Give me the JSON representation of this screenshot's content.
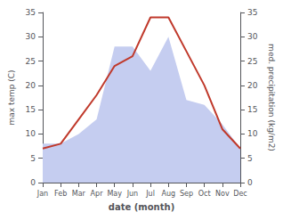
{
  "chart_data": {
    "type": "line",
    "categories": [
      "Jan",
      "Feb",
      "Mar",
      "Apr",
      "May",
      "Jun",
      "Jul",
      "Aug",
      "Sep",
      "Oct",
      "Nov",
      "Dec"
    ],
    "series": [
      {
        "type": "area",
        "color": "#c5cdf0",
        "axis": "y2",
        "values": [
          8,
          8,
          10,
          13,
          28,
          28,
          23,
          30,
          17,
          16,
          12,
          7
        ]
      },
      {
        "type": "line",
        "color": "#c0392b",
        "values": [
          7,
          8,
          13,
          18,
          24,
          26,
          34,
          34,
          27,
          20,
          11,
          7
        ]
      }
    ],
    "xlabel": "date (month)",
    "ylabel": "max temp (C)",
    "y2label": "med. precipitation (kg/m2)",
    "ylim": [
      0,
      35
    ],
    "yticks": [
      0,
      5,
      10,
      15,
      20,
      25,
      30,
      35
    ],
    "y2lim": [
      0,
      35
    ],
    "y2ticks": [
      0,
      5,
      10,
      15,
      20,
      25,
      30,
      35
    ],
    "grid": false
  }
}
